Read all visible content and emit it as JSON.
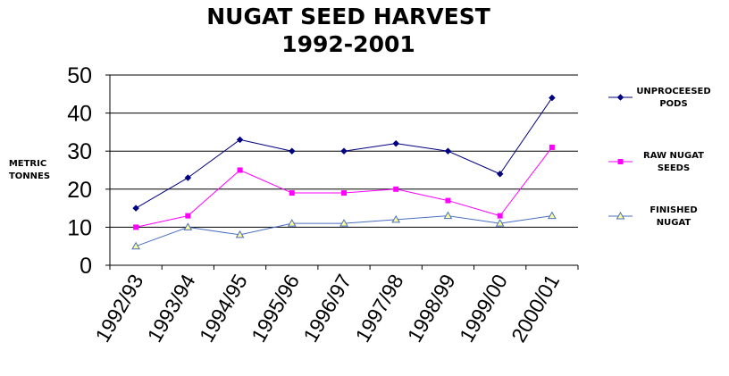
{
  "chart_data": {
    "type": "line",
    "title": [
      "NUGAT SEED HARVEST",
      "1992-2001"
    ],
    "ylabel": [
      "METRIC",
      "TONNES"
    ],
    "xlabel": "",
    "categories": [
      "1992/93",
      "1993/94",
      "1994/95",
      "1995/96",
      "1996/97",
      "1997/98",
      "1998/99",
      "1999/00",
      "2000/01"
    ],
    "ylim": [
      0,
      50
    ],
    "yticks": [
      0,
      10,
      20,
      30,
      40,
      50
    ],
    "grid": true,
    "legend_position": "right",
    "series": [
      {
        "name": [
          "UNPROCEESED",
          "PODS"
        ],
        "color": "#000080",
        "marker": "diamond",
        "values": [
          15,
          23,
          33,
          30,
          30,
          32,
          30,
          24,
          44
        ],
        "segments_broken_after": [
          3
        ]
      },
      {
        "name": [
          "RAW NUGAT",
          "SEEDS"
        ],
        "color": "#ff00ff",
        "marker": "square",
        "values": [
          10,
          13,
          25,
          19,
          19,
          20,
          17,
          13,
          31
        ]
      },
      {
        "name": [
          "FINISHED",
          "NUGAT"
        ],
        "color": "#4a6fbf",
        "marker": "triangle",
        "marker_fill": "#ffff99",
        "values": [
          5,
          10,
          8,
          11,
          11,
          12,
          13,
          11,
          13
        ]
      }
    ]
  }
}
